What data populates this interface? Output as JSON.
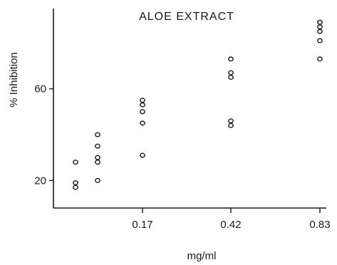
{
  "chart_data": {
    "type": "scatter",
    "title": "ALOE EXTRACT",
    "xlabel": "mg/ml",
    "ylabel": "% Inhibition",
    "y_ticks": [
      20,
      60
    ],
    "x_tick_labels": [
      "0.17",
      "0.42",
      "0.83"
    ],
    "ylim": [
      8,
      95
    ],
    "grid": false,
    "groups": [
      {
        "x_label": "",
        "values": [
          28,
          19,
          17
        ]
      },
      {
        "x_label": "",
        "values": [
          40,
          35,
          30,
          28,
          20
        ]
      },
      {
        "x_label": "0.17",
        "values": [
          55,
          53,
          50,
          45,
          31
        ]
      },
      {
        "x_label": "0.42",
        "values": [
          73,
          67,
          65,
          46,
          44
        ]
      },
      {
        "x_label": "0.83",
        "values": [
          89,
          87,
          85,
          81,
          73
        ]
      }
    ]
  }
}
